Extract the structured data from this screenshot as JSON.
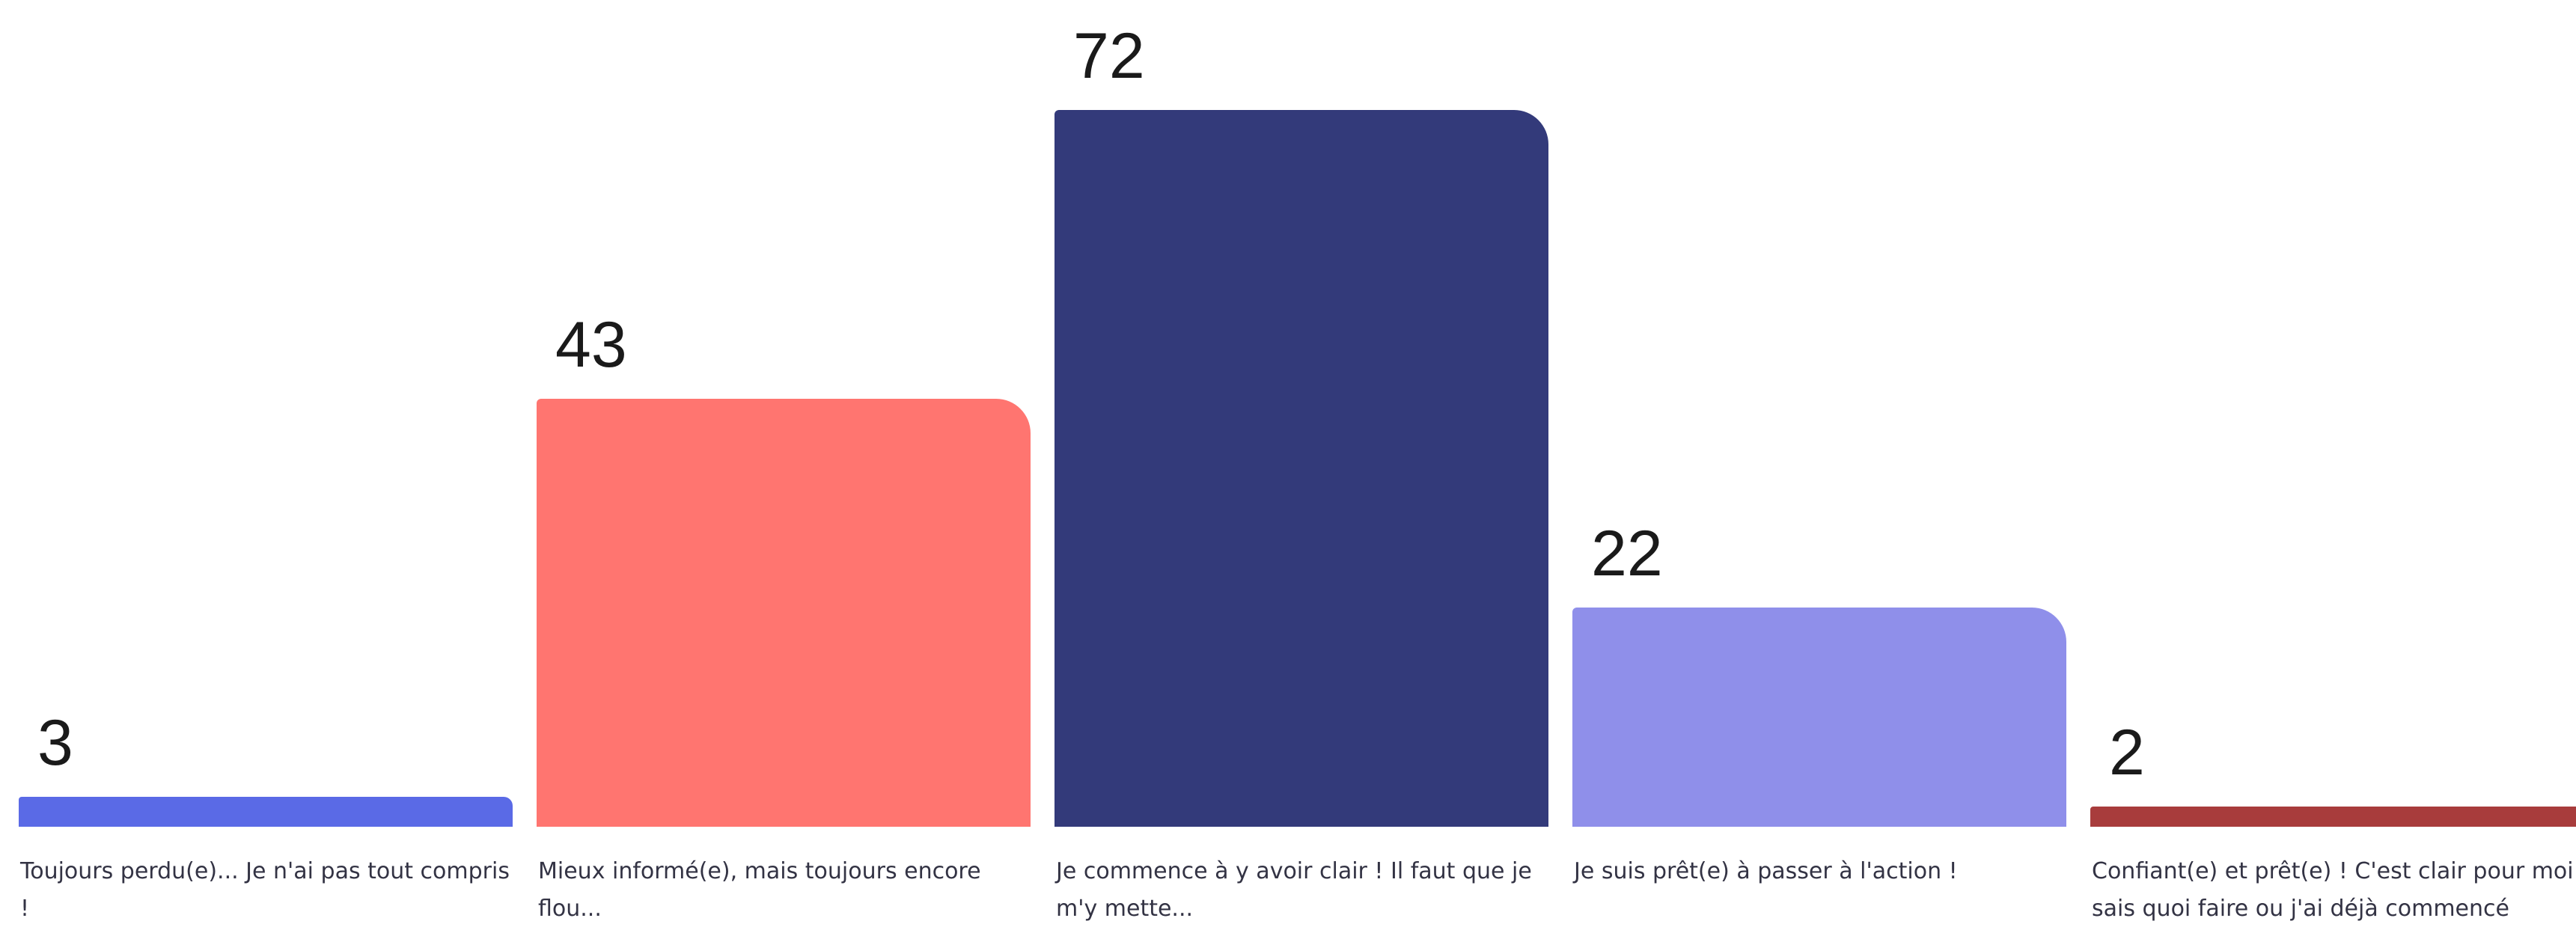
{
  "chart_data": {
    "type": "bar",
    "categories": [
      "Toujours perdu(e)... Je n'ai pas tout compris !",
      "Mieux informé(e), mais toujours encore flou...",
      "Je commence à y avoir clair ! Il faut que je m'y mette...",
      "Je suis prêt(e) à passer à l'action !",
      "Confiant(e) et prêt(e) ! C'est clair pour moi : je sais quoi faire ou j'ai déjà commencé"
    ],
    "values": [
      3,
      43,
      72,
      22,
      2
    ],
    "colors": [
      "#5a6ae6",
      "#ff7570",
      "#333a7a",
      "#8f8fea",
      "#a83c3c"
    ],
    "ylim": [
      0,
      72
    ],
    "grid": false,
    "legend": "none"
  }
}
